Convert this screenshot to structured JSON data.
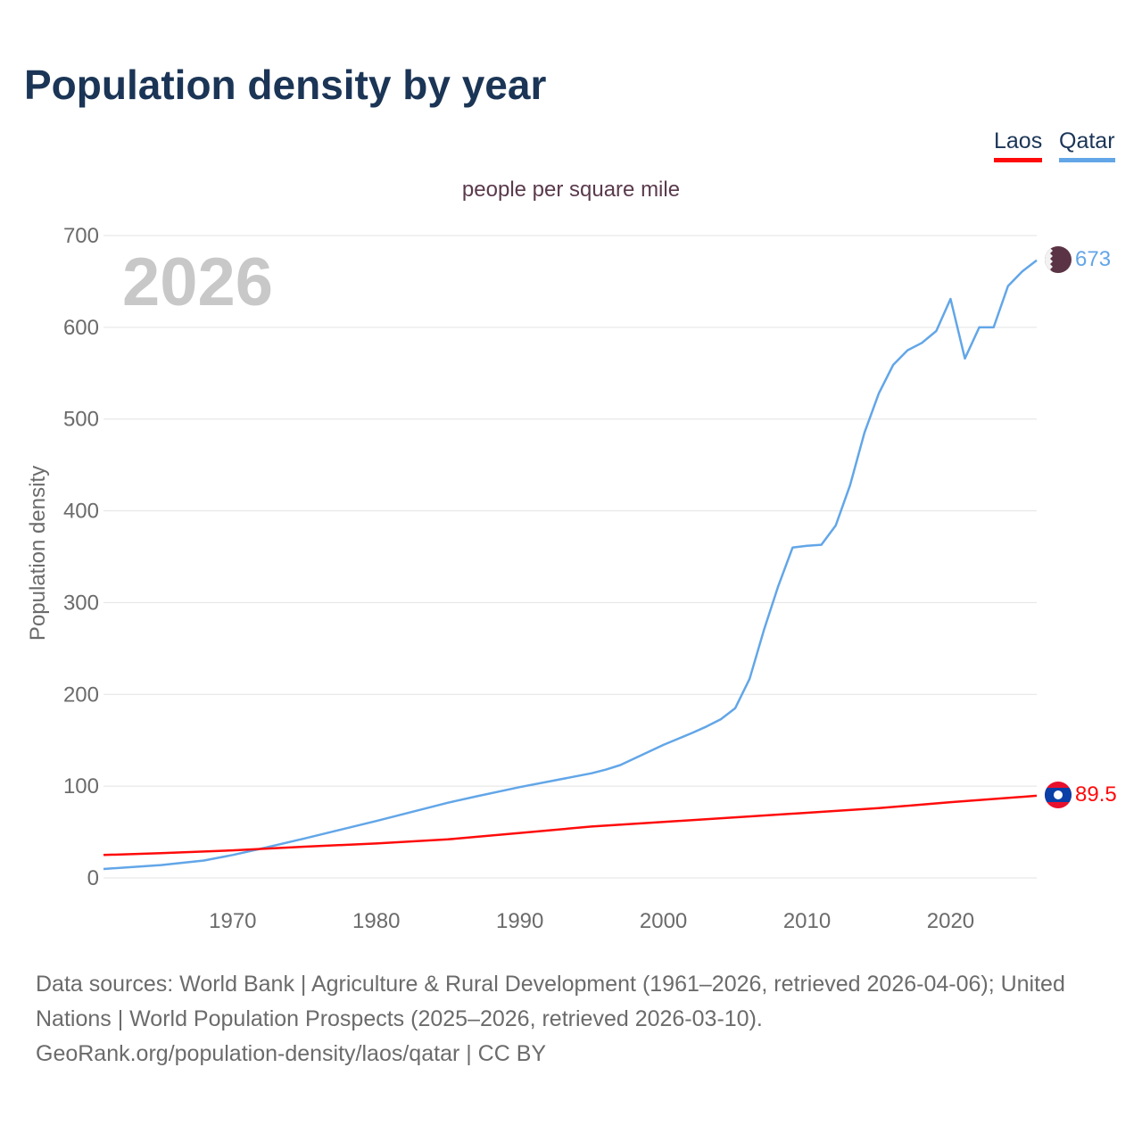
{
  "title": "Population density by year",
  "footer": {
    "line1": "Data sources: World Bank | Agriculture & Rural Development (1961–2026, retrieved 2026-04-06); United Nations | World Population Prospects (2025–2026, retrieved 2026-03-10).",
    "line2": "GeoRank.org/population-density/laos/qatar | CC BY"
  },
  "chart_data": {
    "type": "line",
    "title": "Population density by year",
    "subtitle": "people per square mile",
    "ylabel": "Population density",
    "xlabel": "",
    "year_watermark": "2026",
    "xlim": [
      1961,
      2026
    ],
    "ylim": [
      0,
      700
    ],
    "xticks": [
      "1970",
      "1980",
      "1990",
      "2000",
      "2010",
      "2020"
    ],
    "yticks": [
      "0",
      "100",
      "200",
      "300",
      "400",
      "500",
      "600",
      "700"
    ],
    "grid": true,
    "legend_position": "top-right",
    "series": [
      {
        "name": "Laos",
        "color": "#ff0a0a",
        "end_label": "89.5",
        "flag": "laos-flag",
        "x": [
          1961,
          1965,
          1970,
          1975,
          1980,
          1985,
          1990,
          1995,
          2000,
          2005,
          2010,
          2015,
          2020,
          2026
        ],
        "y": [
          25,
          27,
          30,
          34,
          37.5,
          42,
          49,
          56,
          61,
          66,
          71,
          76,
          82.5,
          89.5
        ]
      },
      {
        "name": "Qatar",
        "color": "#62a6e8",
        "end_label": "673",
        "flag": "qatar-flag",
        "x": [
          1961,
          1965,
          1968,
          1970,
          1972,
          1975,
          1980,
          1985,
          1987,
          1990,
          1995,
          1996,
          1997,
          2000,
          2002,
          2003,
          2004,
          2005,
          2006,
          2007,
          2008,
          2009,
          2010,
          2011,
          2012,
          2013,
          2014,
          2015,
          2016,
          2017,
          2018,
          2019,
          2020,
          2021,
          2022,
          2023,
          2024,
          2025,
          2026
        ],
        "y": [
          9.7,
          14,
          19,
          25,
          32,
          43,
          62,
          82,
          89,
          99,
          114,
          118,
          123,
          145,
          158,
          165,
          173,
          185,
          217,
          270,
          318,
          360,
          362,
          363,
          384,
          428,
          485,
          528,
          559,
          575,
          583,
          596,
          631,
          566,
          600,
          600,
          645,
          661,
          673
        ]
      }
    ]
  }
}
